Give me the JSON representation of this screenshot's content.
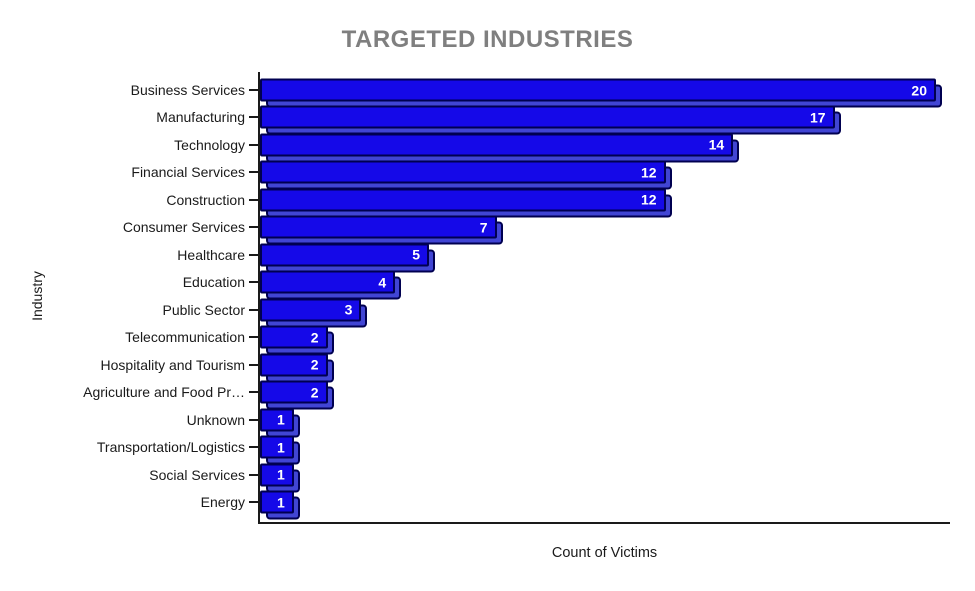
{
  "chart_data": {
    "type": "bar",
    "orientation": "horizontal",
    "title": "TARGETED INDUSTRIES",
    "xlabel": "Count of Victims",
    "ylabel": "Industry",
    "categories": [
      "Business Services",
      "Manufacturing",
      "Technology",
      "Financial Services",
      "Construction",
      "Consumer Services",
      "Healthcare",
      "Education",
      "Public Sector",
      "Telecommunication",
      "Hospitality and Tourism",
      "Agriculture and Food Pr…",
      "Unknown",
      "Transportation/Logistics",
      "Social Services",
      "Energy"
    ],
    "values": [
      20,
      17,
      14,
      12,
      12,
      7,
      5,
      4,
      3,
      2,
      2,
      2,
      1,
      1,
      1,
      1
    ],
    "xlim": [
      0,
      20.5
    ],
    "grid": false,
    "legend": "none",
    "value_labels_shown": true,
    "colors": {
      "bar_face": "#1509e8",
      "bar_side": "#4145d4",
      "bar_border": "#000050",
      "value_text": "#ffffff",
      "title_text": "#7f7f7f",
      "axis_and_labels": "#1a1a1a"
    }
  }
}
